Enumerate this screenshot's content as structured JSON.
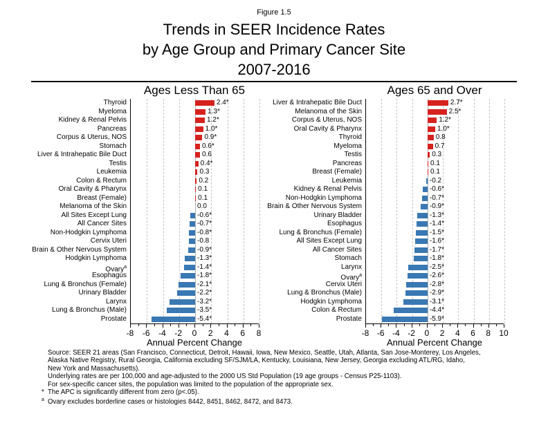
{
  "figure_label": "Figure 1.5",
  "title_lines": [
    "Trends in SEER Incidence Rates",
    "by Age Group and Primary Cancer Site",
    "2007-2016"
  ],
  "colors": {
    "positive_bar": "#d6221e",
    "negative_bar": "#3978b3",
    "gridline": "#c3c3c3",
    "zero_line": "#b0b0b0",
    "axis": "#000000"
  },
  "chart_data": [
    {
      "type": "bar",
      "orientation": "horizontal",
      "title": "Ages Less Than 65",
      "xlabel": "Annual Percent Change",
      "xlim": [
        -8,
        8
      ],
      "xticks": [
        -8,
        -6,
        -4,
        -2,
        0,
        2,
        4,
        6,
        8
      ],
      "grid": "dashed vertical at even ticks",
      "categories": [
        "Thyroid",
        "Myeloma",
        "Kidney & Renal Pelvis",
        "Pancreas",
        "Corpus & Uterus, NOS",
        "Stomach",
        "Liver & Intrahepatic Bile Duct",
        "Testis",
        "Leukemia",
        "Colon & Rectum",
        "Oral Cavity & Pharynx",
        "Breast (Female)",
        "Melanoma of the Skin",
        "All Sites Except Lung",
        "All Cancer Sites",
        "Non-Hodgkin Lymphoma",
        "Cervix Uteri",
        "Brain & Other Nervous System",
        "Hodgkin Lymphoma",
        "Ovary",
        "Esophagus",
        "Lung & Bronchus (Female)",
        "Urinary Bladder",
        "Larynx",
        "Lung & Bronchus (Male)",
        "Prostate"
      ],
      "category_superscripts": {
        "19": "a"
      },
      "values": [
        2.4,
        1.3,
        1.2,
        1.0,
        0.9,
        0.6,
        0.6,
        0.4,
        0.3,
        0.2,
        0.1,
        0.1,
        0.0,
        -0.6,
        -0.7,
        -0.8,
        -0.8,
        -0.9,
        -1.3,
        -1.4,
        -1.8,
        -2.1,
        -2.2,
        -3.2,
        -3.5,
        -5.4
      ],
      "bar_labels": [
        "2.4*",
        "1.3*",
        "1.2*",
        "1.0*",
        "0.9*",
        "0.6*",
        "0.6",
        "0.4*",
        "0.3",
        "0.2",
        "0.1",
        "0.1",
        "0.0",
        "-0.6*",
        "-0.7*",
        "-0.8*",
        "-0.8",
        "-0.9*",
        "-1.3*",
        "-1.4*",
        "-1.8*",
        "-2.1*",
        "-2.2*",
        "-3.2*",
        "-3.5*",
        "-5.4*"
      ]
    },
    {
      "type": "bar",
      "orientation": "horizontal",
      "title": "Ages 65 and Over",
      "xlabel": "Annual Percent Change",
      "xlim": [
        -8,
        10
      ],
      "xticks": [
        -8,
        -6,
        -4,
        -2,
        0,
        2,
        4,
        6,
        8,
        10
      ],
      "grid": "dashed vertical at even ticks",
      "categories": [
        "Liver & Intrahepatic Bile Duct",
        "Melanoma of the Skin",
        "Corpus & Uterus, NOS",
        "Oral Cavity & Pharynx",
        "Thyroid",
        "Myeloma",
        "Testis",
        "Pancreas",
        "Breast (Female)",
        "Leukemia",
        "Kidney & Renal Pelvis",
        "Non-Hodgkin Lymphoma",
        "Brain & Other Nervous System",
        "Urinary Bladder",
        "Esophagus",
        "Lung & Bronchus (Female)",
        "All Sites Except Lung",
        "All Cancer Sites",
        "Stomach",
        "Larynx",
        "Ovary",
        "Cervix Uteri",
        "Lung & Bronchus (Male)",
        "Hodgkin Lymphoma",
        "Colon & Rectum",
        "Prostate"
      ],
      "category_superscripts": {
        "20": "a"
      },
      "values": [
        2.7,
        2.5,
        1.2,
        1.0,
        0.8,
        0.7,
        0.3,
        0.1,
        0.1,
        -0.2,
        -0.6,
        -0.7,
        -0.9,
        -1.3,
        -1.4,
        -1.5,
        -1.6,
        -1.7,
        -1.8,
        -2.5,
        -2.6,
        -2.8,
        -2.9,
        -3.1,
        -4.4,
        -5.9
      ],
      "bar_labels": [
        "2.7*",
        "2.5*",
        "1.2*",
        "1.0*",
        "0.8",
        "0.7",
        "0.3",
        "0.1",
        "0.1",
        "-0.2",
        "-0.6*",
        "-0.7*",
        "-0.9*",
        "-1.3*",
        "-1.4*",
        "-1.5*",
        "-1.6*",
        "-1.7*",
        "-1.8*",
        "-2.5*",
        "-2.6*",
        "-2.8*",
        "-2.9*",
        "-3.1*",
        "-4.4*",
        "-5.9*"
      ]
    }
  ],
  "footnotes": {
    "lines": [
      {
        "marker": "",
        "sup": false,
        "text": "Source: SEER 21 areas (San Francisco, Connecticut, Detroit, Hawaii, Iowa, New Mexico, Seattle, Utah, Atlanta, San Jose-Monterey, Los Angeles,"
      },
      {
        "marker": "",
        "sup": false,
        "text": "Alaska Native Registry, Rural Georgia, California excluding SF/SJM/LA, Kentucky, Louisiana, New Jersey, Georgia excluding ATL/RG, Idaho,"
      },
      {
        "marker": "",
        "sup": false,
        "text": "New York and Massachusetts)."
      },
      {
        "marker": "",
        "sup": false,
        "text": "Underlying rates are per 100,000 and age-adjusted to the 2000 US Std Population (19 age groups - Census P25-1103)."
      },
      {
        "marker": "",
        "sup": false,
        "text": "For sex-specific cancer sites, the population was limited to the population of the appropriate sex."
      },
      {
        "marker": "*",
        "sup": false,
        "text": "The APC is significantly different from zero (p<.05)."
      },
      {
        "marker": "a",
        "sup": true,
        "text": "Ovary excludes borderline cases or histologies 8442, 8451, 8462, 8472, and 8473."
      }
    ]
  }
}
